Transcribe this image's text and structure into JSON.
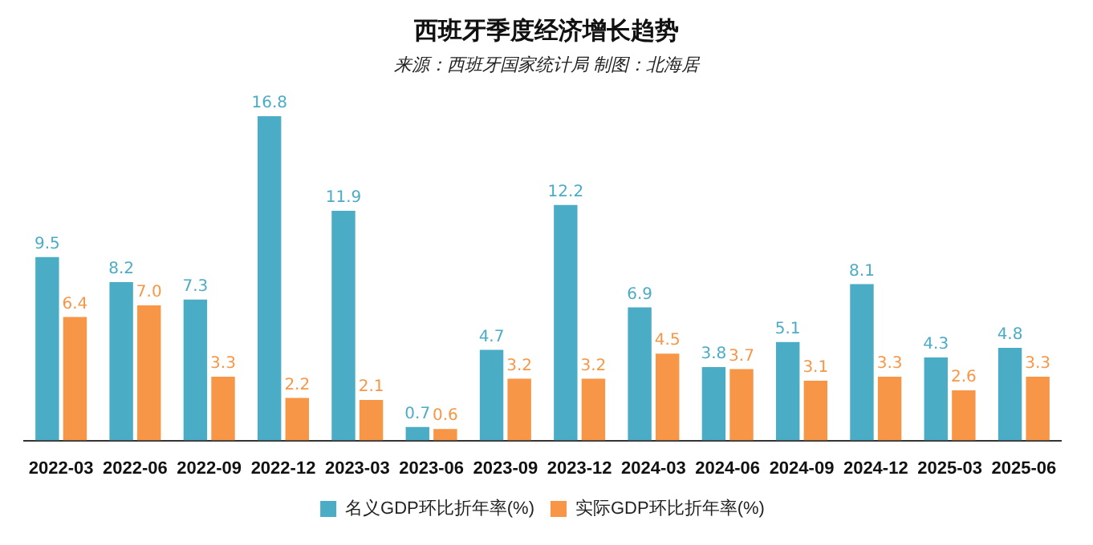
{
  "chart_data": {
    "type": "bar",
    "title": "西班牙季度经济增长趋势",
    "subtitle": "来源：西班牙国家统计局 制图：北海居",
    "categories": [
      "2022-03",
      "2022-06",
      "2022-09",
      "2022-12",
      "2023-03",
      "2023-06",
      "2023-09",
      "2023-12",
      "2024-03",
      "2024-06",
      "2024-09",
      "2024-12",
      "2025-03",
      "2025-06"
    ],
    "series": [
      {
        "name": "名义GDP环比折年率(%)",
        "color": "#4bacc6",
        "values": [
          9.5,
          8.2,
          7.3,
          16.8,
          11.9,
          0.7,
          4.7,
          12.2,
          6.9,
          3.8,
          5.1,
          8.1,
          4.3,
          4.8
        ],
        "value_labels": [
          "9.5",
          "8.2",
          "7.3",
          "16.8",
          "11.9",
          "0.7",
          "4.7",
          "12.2",
          "6.9",
          "3.8",
          "5.1",
          "8.1",
          "4.3",
          "4.8"
        ]
      },
      {
        "name": "实际GDP环比折年率(%)",
        "color": "#f79646",
        "values": [
          6.4,
          7.0,
          3.3,
          2.2,
          2.1,
          0.6,
          3.2,
          3.2,
          4.5,
          3.7,
          3.1,
          3.3,
          2.6,
          3.3
        ],
        "value_labels": [
          "6.4",
          "7.0",
          "3.3",
          "2.2",
          "2.1",
          "0.6",
          "3.2",
          "3.2",
          "4.5",
          "3.7",
          "3.1",
          "3.3",
          "2.6",
          "3.3"
        ]
      }
    ],
    "legend": "bottom"
  }
}
